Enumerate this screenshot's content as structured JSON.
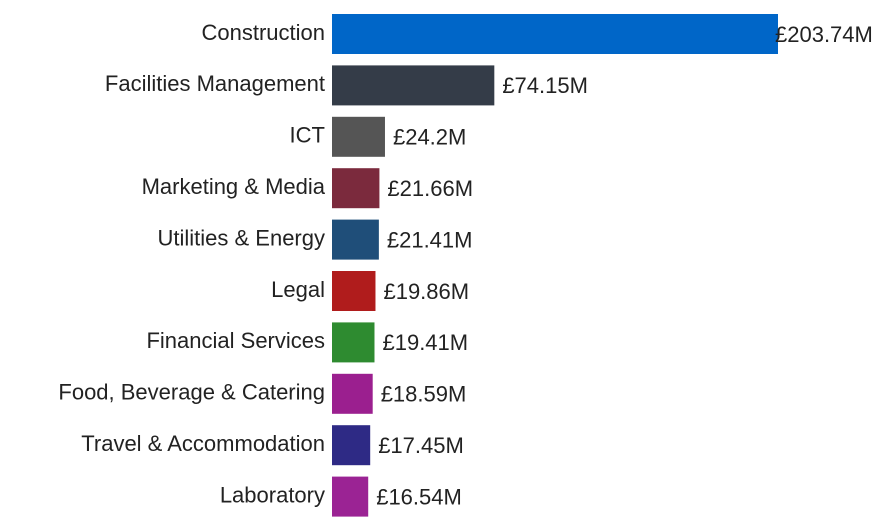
{
  "chart_data": {
    "type": "bar",
    "orientation": "horizontal",
    "categories": [
      "Construction",
      "Facilities Management",
      "ICT",
      "Marketing & Media",
      "Utilities & Energy",
      "Legal",
      "Financial Services",
      "Food, Beverage & Catering",
      "Travel & Accommodation",
      "Laboratory"
    ],
    "values": [
      203.74,
      74.15,
      24.2,
      21.66,
      21.41,
      19.86,
      19.41,
      18.59,
      17.45,
      16.54
    ],
    "value_labels": [
      "£203.74M",
      "£74.15M",
      "£24.2M",
      "£21.66M",
      "£21.41M",
      "£19.86M",
      "£19.41M",
      "£18.59M",
      "£17.45M",
      "£16.54M"
    ],
    "colors": [
      "#0066c8",
      "#343c48",
      "#555555",
      "#7b2a3d",
      "#1f4e79",
      "#b01c1c",
      "#2e8b30",
      "#9b1f8f",
      "#2e2a85",
      "#9b2394"
    ]
  }
}
